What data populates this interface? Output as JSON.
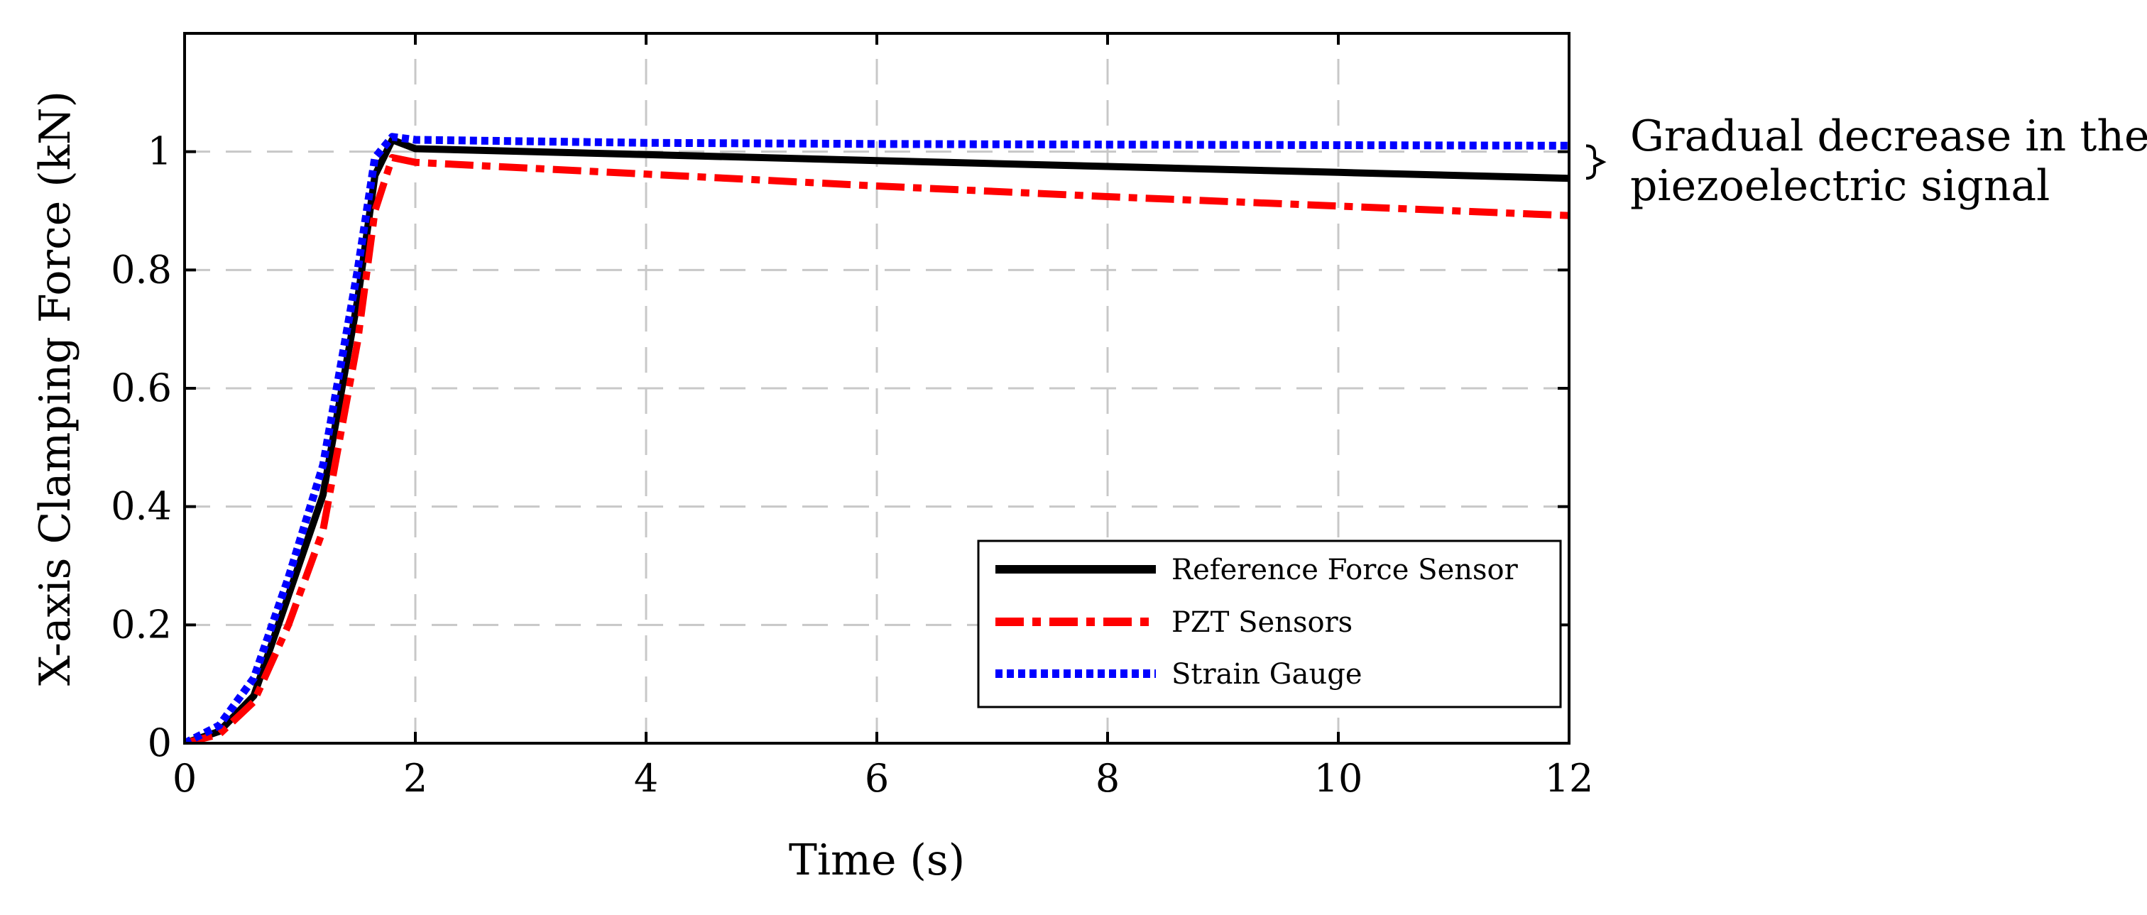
{
  "chart_data": {
    "type": "line",
    "title": "",
    "xlabel": "Time (s)",
    "ylabel": "X-axis Clamping Force (kN)",
    "xlim": [
      0,
      12
    ],
    "ylim": [
      0,
      1.2
    ],
    "xticks": [
      0,
      2,
      4,
      6,
      8,
      10,
      12
    ],
    "xtick_labels": [
      "0",
      "2",
      "4",
      "6",
      "8",
      "10",
      "12"
    ],
    "yticks": [
      0,
      0.2,
      0.4,
      0.6,
      0.8,
      1.0
    ],
    "ytick_labels": [
      "0",
      "0.2",
      "0.4",
      "0.6",
      "0.8",
      "1"
    ],
    "grid": true,
    "legend_position": "bottom-right",
    "series": [
      {
        "name": "Reference Force Sensor",
        "color": "#000000",
        "style": "solid",
        "x": [
          0,
          0.3,
          0.6,
          0.9,
          1.2,
          1.5,
          1.65,
          1.8,
          2.0,
          4,
          6,
          8,
          10,
          12
        ],
        "y": [
          0,
          0.02,
          0.08,
          0.25,
          0.42,
          0.75,
          0.96,
          1.02,
          1.005,
          0.995,
          0.985,
          0.975,
          0.965,
          0.955
        ]
      },
      {
        "name": "PZT Sensors",
        "color": "#ff0000",
        "style": "dashdot",
        "x": [
          0,
          0.3,
          0.6,
          0.9,
          1.2,
          1.5,
          1.65,
          1.8,
          2.0,
          4,
          6,
          8,
          10,
          12
        ],
        "y": [
          0,
          0.015,
          0.07,
          0.2,
          0.36,
          0.68,
          0.9,
          0.99,
          0.982,
          0.962,
          0.942,
          0.924,
          0.908,
          0.892
        ]
      },
      {
        "name": "Strain Gauge",
        "color": "#0000ff",
        "style": "dotted",
        "x": [
          0,
          0.3,
          0.6,
          0.9,
          1.2,
          1.5,
          1.65,
          1.8,
          2.0,
          4,
          6,
          8,
          10,
          12
        ],
        "y": [
          0,
          0.03,
          0.11,
          0.28,
          0.47,
          0.8,
          0.99,
          1.025,
          1.02,
          1.015,
          1.013,
          1.012,
          1.011,
          1.01
        ]
      }
    ],
    "annotation": {
      "lines": [
        "Gradual decrease in the",
        "piezoelectric signal"
      ],
      "bracket_y_range": [
        0.955,
        1.01
      ]
    }
  }
}
